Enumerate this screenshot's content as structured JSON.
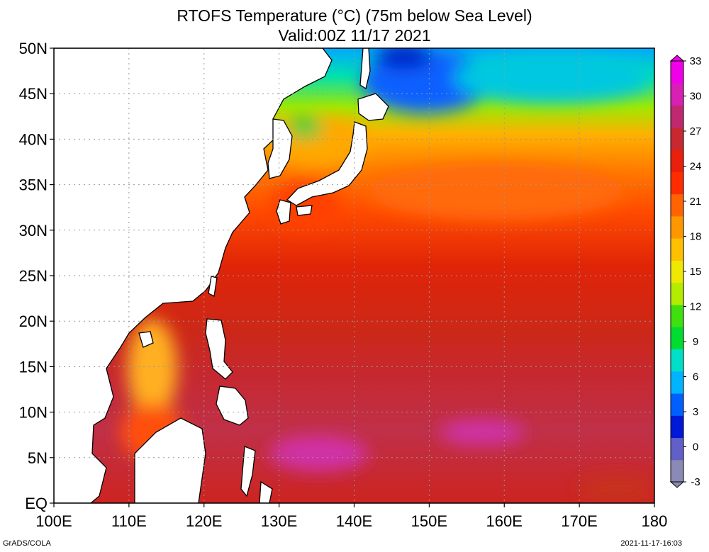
{
  "title": "RTOFS Temperature (°C) (75m below Sea Level)",
  "subtitle": "Valid:00Z 11/17 2021",
  "chart_data": {
    "type": "heatmap",
    "variable": "Temperature (°C)",
    "depth": "75m below Sea Level",
    "lon_range": [
      100,
      180
    ],
    "lat_range": [
      0,
      50
    ],
    "lon_ticks": [
      "100E",
      "110E",
      "120E",
      "130E",
      "140E",
      "150E",
      "160E",
      "170E",
      "180"
    ],
    "lat_ticks": [
      "EQ",
      "5N",
      "10N",
      "15N",
      "20N",
      "25N",
      "30N",
      "35N",
      "40N",
      "45N",
      "50N"
    ],
    "colorbar": {
      "min": -3,
      "max": 33,
      "ticks": [
        "-3",
        "0",
        "3",
        "6",
        "9",
        "12",
        "15",
        "18",
        "21",
        "24",
        "27",
        "30",
        "33"
      ],
      "colors": [
        "#8a8ab4",
        "#6060c8",
        "#0018d8",
        "#0060ff",
        "#00b4ff",
        "#00e0c8",
        "#00dc30",
        "#40e010",
        "#b4ec00",
        "#f0e800",
        "#ffc000",
        "#ff9800",
        "#ff6400",
        "#ff2c00",
        "#e8200c",
        "#c82830",
        "#c02870",
        "#d820b4",
        "#f000e8"
      ]
    }
  },
  "footer": {
    "credit": "GrADS/COLA",
    "timestamp": "2021-11-17-16:03"
  }
}
